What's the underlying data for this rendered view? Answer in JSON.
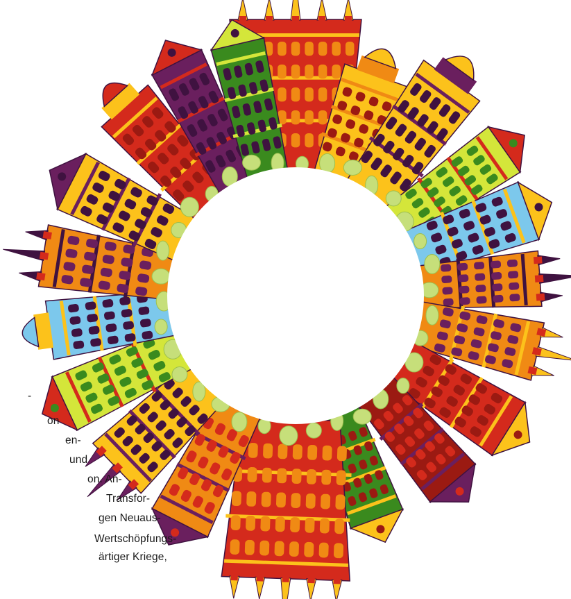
{
  "illustration": {
    "name": "circular-city-skyline",
    "colors": {
      "red": "#d42a1c",
      "dark_red": "#9b1a12",
      "orange": "#f08a14",
      "yellow": "#fcc21b",
      "light_yellow": "#ffe14a",
      "purple": "#6a1f5e",
      "dark_purple": "#3f1240",
      "green": "#3a8a1e",
      "lime": "#d4e63a",
      "blue": "#35a4d8",
      "light_blue": "#7cc8ec",
      "tree": "#c6df7a"
    }
  },
  "text_fragments": [
    "-",
    "on",
    "en-",
    "und",
    "on. An-",
    "Transfor-",
    "gen Neuaus-",
    "Wertschöpfungs-",
    "ärtiger  Kriege,"
  ]
}
